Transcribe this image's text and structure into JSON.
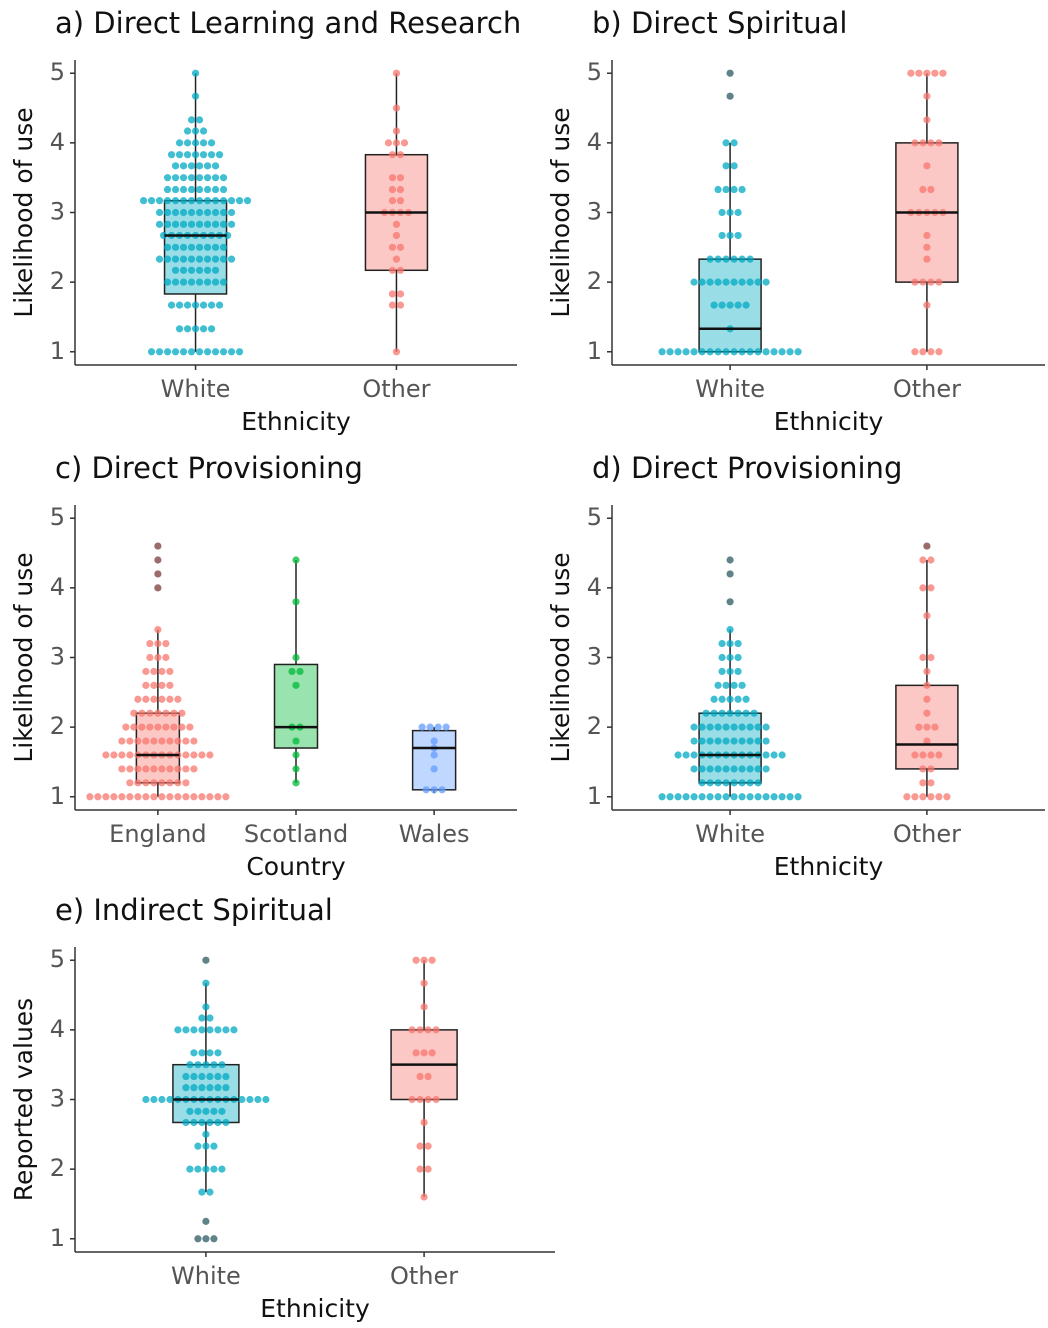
{
  "chart_data": [
    {
      "type": "box",
      "title": "a) Direct Learning and Research",
      "xlabel": "Ethnicity",
      "ylabel": "Likelihood of use",
      "ylim": [
        0.81,
        5.19
      ],
      "yticks": [
        1,
        2,
        3,
        4,
        5
      ],
      "groups": [
        {
          "name": "White",
          "color": "#00a9c4",
          "outlier_color": "#2b5a63",
          "whisker_low": 1,
          "q1": 1.83,
          "median": 2.67,
          "q3": 3.17,
          "whisker_high": 5,
          "points": [
            1,
            1,
            1,
            1,
            1,
            1,
            1,
            1,
            1,
            1,
            1,
            1,
            1.33,
            1.33,
            1.33,
            1.33,
            1.33,
            1.67,
            1.67,
            1.67,
            1.67,
            1.67,
            1.67,
            1.67,
            2,
            2,
            2,
            2,
            2,
            2,
            2,
            2,
            2.17,
            2.17,
            2.17,
            2.17,
            2.17,
            2.17,
            2.33,
            2.33,
            2.33,
            2.33,
            2.33,
            2.33,
            2.33,
            2.33,
            2.33,
            2.33,
            2.5,
            2.5,
            2.5,
            2.5,
            2.5,
            2.5,
            2.5,
            2.5,
            2.67,
            2.67,
            2.67,
            2.67,
            2.67,
            2.67,
            2.67,
            2.67,
            2.67,
            2.83,
            2.83,
            2.83,
            2.83,
            2.83,
            2.83,
            2.83,
            2.83,
            2.83,
            2.83,
            3,
            3,
            3,
            3,
            3,
            3,
            3,
            3,
            3,
            3,
            3.17,
            3.17,
            3.17,
            3.17,
            3.17,
            3.17,
            3.17,
            3.17,
            3.17,
            3.17,
            3.17,
            3.17,
            3.17,
            3.17,
            3.33,
            3.33,
            3.33,
            3.33,
            3.33,
            3.33,
            3.33,
            3.33,
            3.5,
            3.5,
            3.5,
            3.5,
            3.5,
            3.5,
            3.5,
            3.5,
            3.67,
            3.67,
            3.67,
            3.67,
            3.67,
            3.67,
            3.83,
            3.83,
            3.83,
            3.83,
            3.83,
            3.83,
            3.83,
            4,
            4,
            4,
            4,
            4,
            4.17,
            4.17,
            4.17,
            4.33,
            4.33,
            4.67,
            5
          ],
          "outliers": []
        },
        {
          "name": "Other",
          "color": "#f8766d",
          "outlier_color": "#7a3b37",
          "whisker_low": 1,
          "q1": 2.17,
          "median": 3,
          "q3": 3.83,
          "whisker_high": 5,
          "points": [
            1,
            1.67,
            1.67,
            1.83,
            1.83,
            2.17,
            2.17,
            2.33,
            2.5,
            2.5,
            2.67,
            2.83,
            3,
            3,
            3,
            3,
            3.17,
            3.17,
            3.33,
            3.33,
            3.5,
            3.5,
            3.83,
            3.83,
            4,
            4,
            4,
            4.17,
            4.5,
            5
          ],
          "outliers": []
        }
      ]
    },
    {
      "type": "box",
      "title": "b) Direct Spiritual",
      "xlabel": "Ethnicity",
      "ylabel": "Likelihood of use",
      "ylim": [
        0.81,
        5.19
      ],
      "yticks": [
        1,
        2,
        3,
        4,
        5
      ],
      "groups": [
        {
          "name": "White",
          "color": "#00a9c4",
          "outlier_color": "#2b5a63",
          "whisker_low": 1,
          "q1": 1,
          "median": 1.33,
          "q3": 2.33,
          "whisker_high": 4,
          "points": [
            1,
            1,
            1,
            1,
            1,
            1,
            1,
            1,
            1,
            1,
            1,
            1,
            1,
            1,
            1,
            1,
            1,
            1,
            1.33,
            1.67,
            1.67,
            1.67,
            1.67,
            1.67,
            2,
            2,
            2,
            2,
            2,
            2,
            2,
            2,
            2,
            2,
            2.33,
            2.33,
            2.33,
            2.33,
            2.33,
            2.33,
            2.67,
            2.67,
            2.67,
            3,
            3,
            3,
            3.33,
            3.33,
            3.33,
            3.33,
            3.67,
            3.67,
            4,
            4
          ],
          "outliers": [
            4.67,
            5
          ]
        },
        {
          "name": "Other",
          "color": "#f8766d",
          "outlier_color": "#7a3b37",
          "whisker_low": 1,
          "q1": 2,
          "median": 3,
          "q3": 4,
          "whisker_high": 5,
          "points": [
            1,
            1,
            1,
            1,
            1.67,
            2,
            2,
            2,
            2,
            2.33,
            2.5,
            2.67,
            3,
            3,
            3,
            3,
            3,
            3.33,
            3.33,
            3.67,
            4,
            4,
            4,
            4,
            4.33,
            4.67,
            5,
            5,
            5,
            5,
            5
          ],
          "outliers": []
        }
      ]
    },
    {
      "type": "box",
      "title": "c) Direct Provisioning",
      "xlabel": "Country",
      "ylabel": "Likelihood of use",
      "ylim": [
        0.81,
        5.19
      ],
      "yticks": [
        1,
        2,
        3,
        4,
        5
      ],
      "groups": [
        {
          "name": "England",
          "color": "#f8766d",
          "outlier_color": "#7a3b37",
          "whisker_low": 1,
          "q1": 1.2,
          "median": 1.6,
          "q3": 2.2,
          "whisker_high": 3.4,
          "points": [
            1,
            1,
            1,
            1,
            1,
            1,
            1,
            1,
            1,
            1,
            1,
            1,
            1,
            1,
            1,
            1,
            1,
            1,
            1.2,
            1.2,
            1.2,
            1.2,
            1.2,
            1.2,
            1.2,
            1.2,
            1.4,
            1.4,
            1.4,
            1.4,
            1.4,
            1.4,
            1.4,
            1.4,
            1.4,
            1.4,
            1.6,
            1.6,
            1.6,
            1.6,
            1.6,
            1.6,
            1.6,
            1.6,
            1.6,
            1.6,
            1.6,
            1.6,
            1.6,
            1.6,
            1.8,
            1.8,
            1.8,
            1.8,
            1.8,
            1.8,
            1.8,
            1.8,
            1.8,
            1.8,
            2,
            2,
            2,
            2,
            2,
            2,
            2,
            2,
            2,
            2.2,
            2.2,
            2.2,
            2.2,
            2.2,
            2.2,
            2.2,
            2.4,
            2.4,
            2.4,
            2.4,
            2.4,
            2.4,
            2.6,
            2.6,
            2.6,
            2.6,
            2.8,
            2.8,
            2.8,
            2.8,
            3,
            3,
            3,
            3.2,
            3.2,
            3.2,
            3.4
          ],
          "outliers": [
            4,
            4.2,
            4.4,
            4.6
          ]
        },
        {
          "name": "Scotland",
          "color": "#00ba38",
          "outlier_color": "#1d5a2e",
          "whisker_low": 1.2,
          "q1": 1.7,
          "median": 2,
          "q3": 2.9,
          "whisker_high": 4.4,
          "points": [
            1.2,
            1.4,
            1.6,
            1.8,
            2,
            2,
            2.6,
            2.8,
            2.8,
            3,
            3.8,
            4.4
          ],
          "outliers": []
        },
        {
          "name": "Wales",
          "color": "#619cff",
          "outlier_color": "#2d4a7a",
          "whisker_low": 1.05,
          "q1": 1.1,
          "median": 1.7,
          "q3": 1.95,
          "whisker_high": 2,
          "points": [
            1.1,
            1.1,
            1.1,
            1.4,
            1.6,
            1.7,
            1.8,
            2,
            2,
            2,
            2
          ],
          "outliers": []
        }
      ]
    },
    {
      "type": "box",
      "title": "d) Direct Provisioning",
      "xlabel": "Ethnicity",
      "ylabel": "Likelihood of use",
      "ylim": [
        0.81,
        5.19
      ],
      "yticks": [
        1,
        2,
        3,
        4,
        5
      ],
      "groups": [
        {
          "name": "White",
          "color": "#00a9c4",
          "outlier_color": "#2b5a63",
          "whisker_low": 1,
          "q1": 1.2,
          "median": 1.6,
          "q3": 2.2,
          "whisker_high": 3.4,
          "points": [
            1,
            1,
            1,
            1,
            1,
            1,
            1,
            1,
            1,
            1,
            1,
            1,
            1,
            1,
            1,
            1,
            1,
            1,
            1.2,
            1.2,
            1.2,
            1.2,
            1.2,
            1.2,
            1.2,
            1.2,
            1.4,
            1.4,
            1.4,
            1.4,
            1.4,
            1.4,
            1.4,
            1.4,
            1.4,
            1.4,
            1.6,
            1.6,
            1.6,
            1.6,
            1.6,
            1.6,
            1.6,
            1.6,
            1.6,
            1.6,
            1.6,
            1.6,
            1.6,
            1.6,
            1.8,
            1.8,
            1.8,
            1.8,
            1.8,
            1.8,
            1.8,
            1.8,
            1.8,
            1.8,
            2,
            2,
            2,
            2,
            2,
            2,
            2,
            2,
            2,
            2,
            2.2,
            2.2,
            2.2,
            2.2,
            2.2,
            2.2,
            2.2,
            2.4,
            2.4,
            2.4,
            2.4,
            2.4,
            2.6,
            2.6,
            2.6,
            2.6,
            2.8,
            2.8,
            2.8,
            3,
            3,
            3,
            3.2,
            3.2,
            3.2,
            3.4
          ],
          "outliers": [
            3.8,
            4.2,
            4.4
          ]
        },
        {
          "name": "Other",
          "color": "#f8766d",
          "outlier_color": "#7a3b37",
          "whisker_low": 1,
          "q1": 1.4,
          "median": 1.75,
          "q3": 2.6,
          "whisker_high": 4.4,
          "points": [
            1,
            1,
            1,
            1,
            1,
            1,
            1.2,
            1.2,
            1.4,
            1.4,
            1.6,
            1.6,
            1.6,
            1.6,
            1.8,
            2,
            2,
            2,
            2.2,
            2.4,
            2.6,
            2.8,
            3,
            3,
            3.6,
            4,
            4,
            4.4,
            4.4
          ],
          "outliers": [
            4.6
          ]
        }
      ]
    },
    {
      "type": "box",
      "title": "e) Indirect Spiritual",
      "xlabel": "Ethnicity",
      "ylabel": "Reported values",
      "ylim": [
        0.81,
        5.19
      ],
      "yticks": [
        1,
        2,
        3,
        4,
        5
      ],
      "groups": [
        {
          "name": "White",
          "color": "#00a9c4",
          "outlier_color": "#2b5a63",
          "whisker_low": 1.67,
          "q1": 2.67,
          "median": 3,
          "q3": 3.5,
          "whisker_high": 4.67,
          "points": [
            1.67,
            1.67,
            2,
            2,
            2,
            2,
            2,
            2.33,
            2.33,
            2.33,
            2.5,
            2.67,
            2.67,
            2.67,
            2.67,
            2.67,
            2.67,
            2.83,
            2.83,
            2.83,
            2.83,
            2.83,
            3,
            3,
            3,
            3,
            3,
            3,
            3,
            3,
            3,
            3,
            3,
            3,
            3,
            3,
            3,
            3,
            3.17,
            3.17,
            3.17,
            3.17,
            3.17,
            3.17,
            3.33,
            3.33,
            3.33,
            3.33,
            3.33,
            3.33,
            3.5,
            3.5,
            3.5,
            3.5,
            3.5,
            3.67,
            3.67,
            3.67,
            3.67,
            4,
            4,
            4,
            4,
            4,
            4,
            4,
            4,
            4.17,
            4.17,
            4.33,
            4.67
          ],
          "outliers": [
            1,
            1,
            1,
            1.25,
            5
          ]
        },
        {
          "name": "Other",
          "color": "#f8766d",
          "outlier_color": "#7a3b37",
          "whisker_low": 1.6,
          "q1": 3,
          "median": 3.5,
          "q3": 4,
          "whisker_high": 5,
          "points": [
            1.6,
            2,
            2,
            2.33,
            2.33,
            2.67,
            3,
            3,
            3,
            3,
            3.33,
            3.33,
            3.67,
            3.67,
            3.67,
            4,
            4,
            4,
            4,
            4.33,
            4.67,
            5,
            5,
            5
          ],
          "outliers": []
        }
      ]
    }
  ]
}
